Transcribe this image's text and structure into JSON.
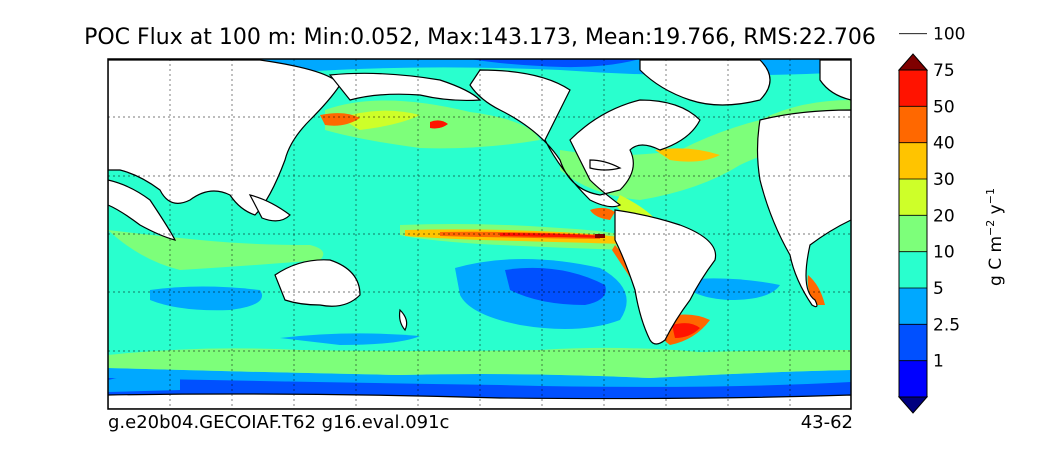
{
  "title": "POC Flux at 100 m: Min:0.052, Max:143.173, Mean:19.766, RMS:22.706",
  "footer_left": "g.e20b04.GECOIAF.T62 g16.eval.091c",
  "footer_right": "43-62",
  "colorbar": {
    "unit_text": "g C m",
    "unit_exp1": "−2",
    "unit_mid": " y",
    "unit_exp2": "−1",
    "colors": [
      "#00007f",
      "#0000ff",
      "#0050ff",
      "#00a8ff",
      "#29ffce",
      "#7dff7a",
      "#ceff29",
      "#ffc400",
      "#ff6800",
      "#ff1300",
      "#7f0000"
    ],
    "tick_labels": [
      "1",
      "2.5",
      "5",
      "10",
      "20",
      "30",
      "40",
      "50",
      "75",
      "100"
    ]
  },
  "chart_data": {
    "type": "heatmap",
    "variable": "POC Flux at 100 m",
    "stats": {
      "min": 0.052,
      "max": 143.173,
      "mean": 19.766,
      "rms": 22.706
    },
    "colorbar_levels": [
      1,
      2.5,
      5,
      10,
      20,
      30,
      40,
      50,
      75,
      100
    ],
    "colorbar_extend": "both",
    "units": "g C m^-2 y^-1",
    "grid": true,
    "map_projection": "global lat-lon"
  }
}
